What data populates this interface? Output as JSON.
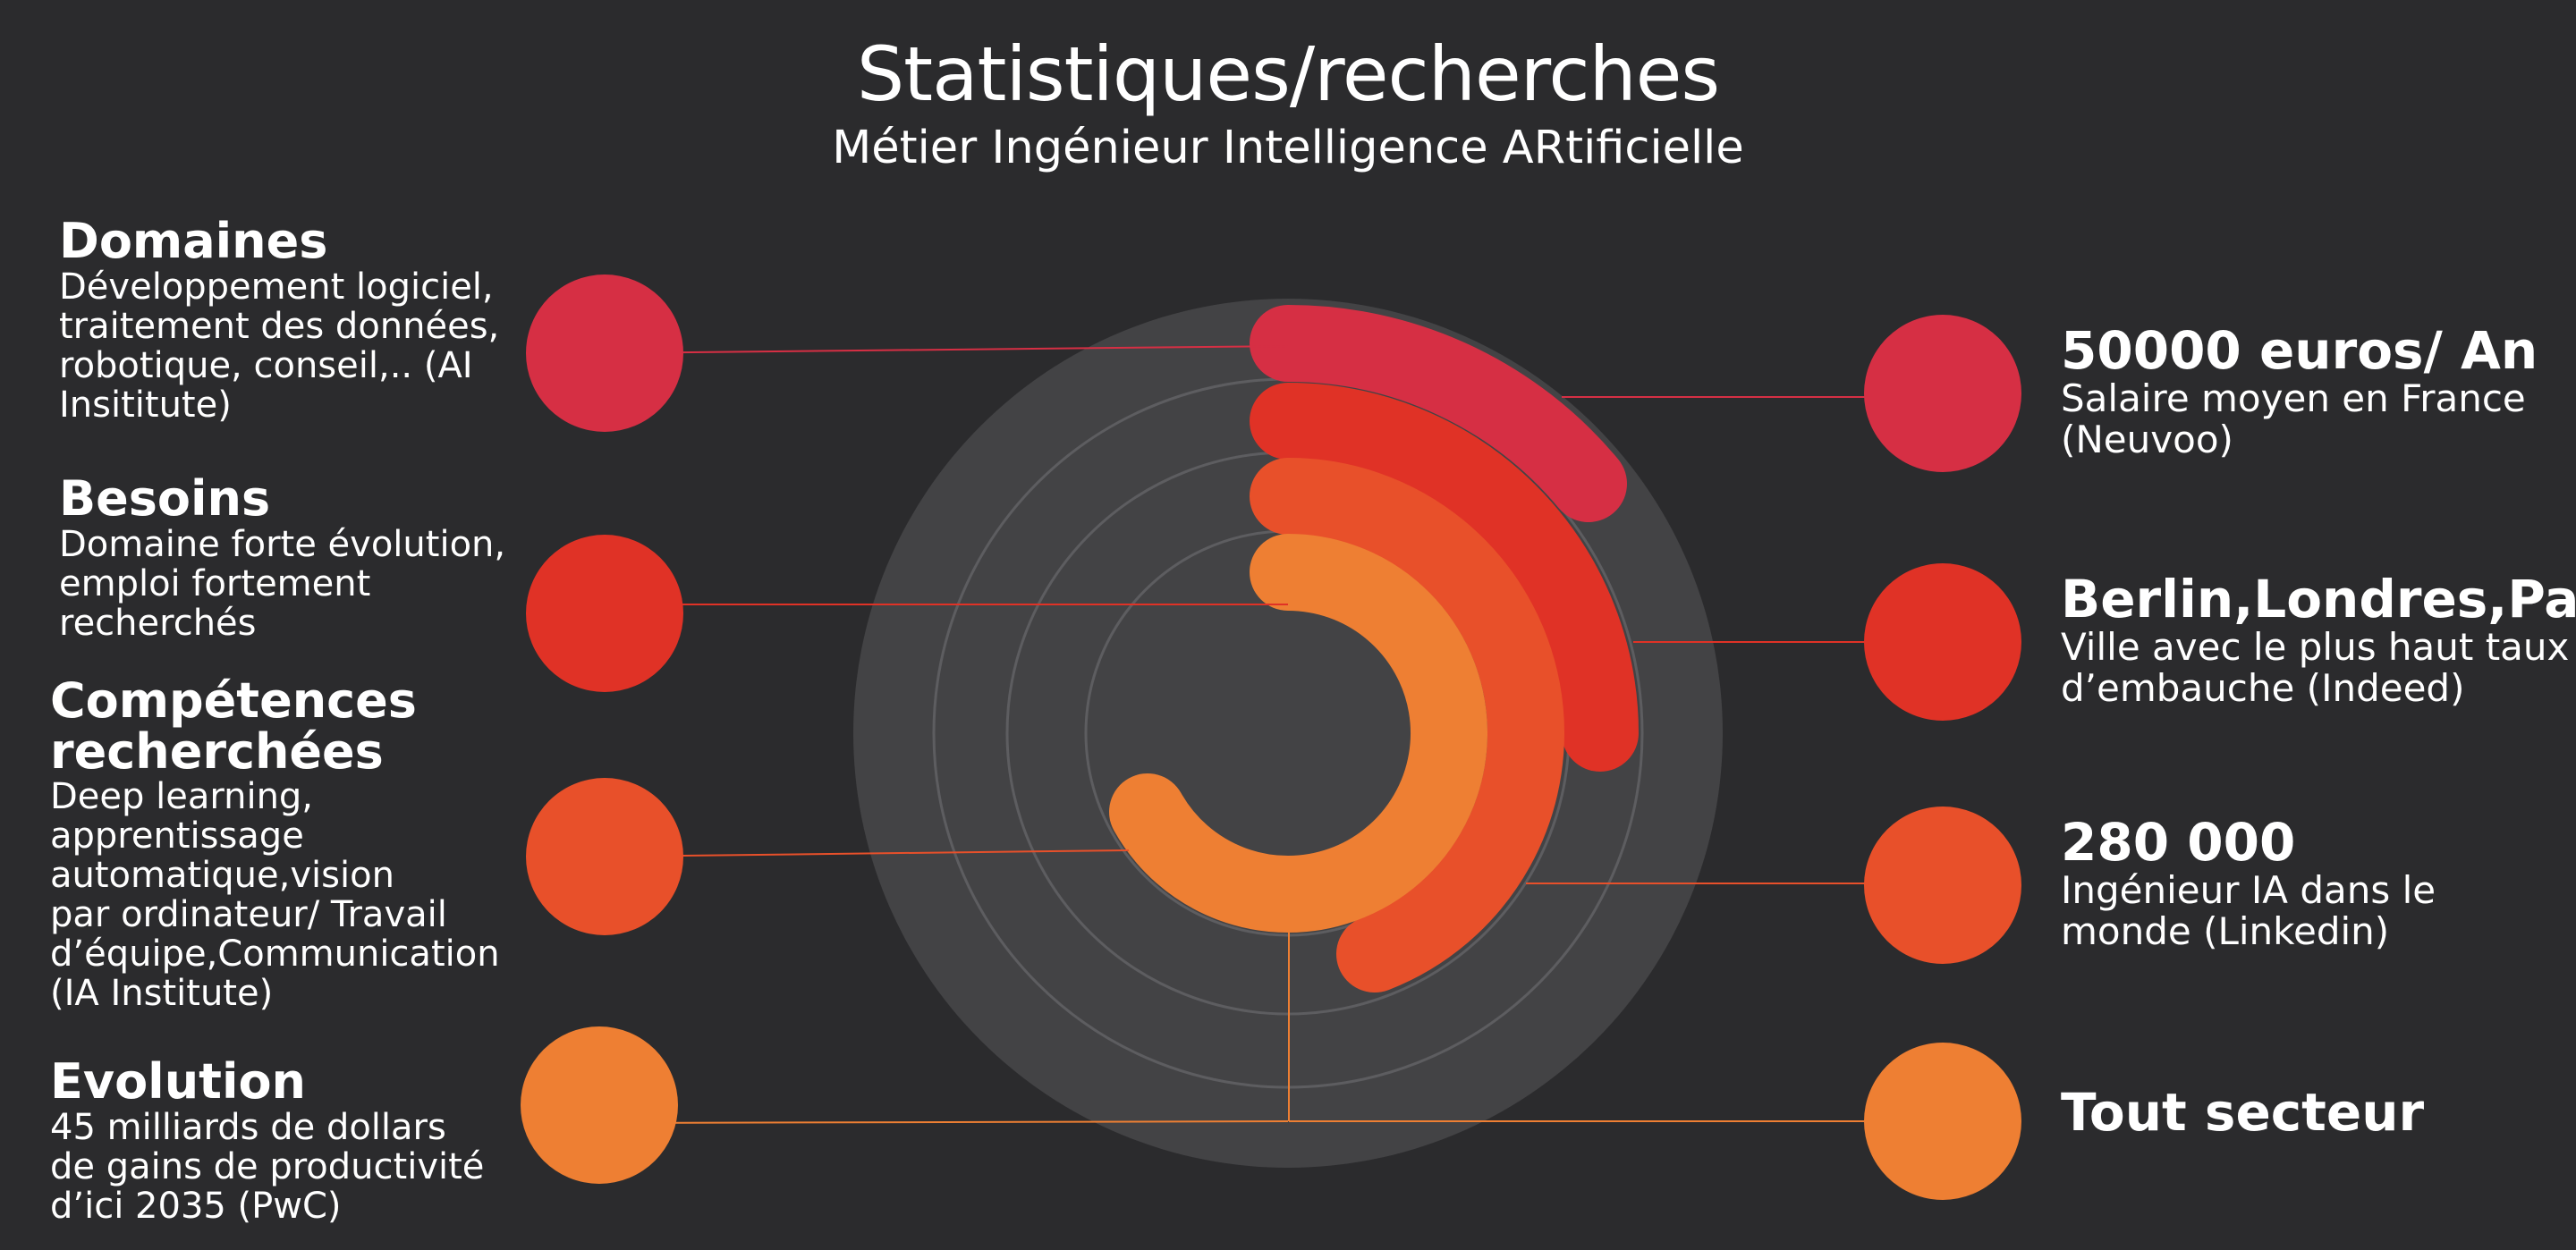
{
  "header": {
    "title": "Statistiques/recherches",
    "subtitle": "Métier Ingénieur Intelligence ARtificielle"
  },
  "colors": {
    "background": "#2b2b2d",
    "target_disc": "#434345",
    "grid_ring": "#5d5d60",
    "crimson": "#d62f44",
    "red": "#e03226",
    "orange_red": "#e8502a",
    "orange": "#ee7f33"
  },
  "left_items": [
    {
      "heading": "Domaines",
      "text": "Développement logiciel, traitement des données, robotique, conseil,.. (AI Insititute)",
      "color": "crimson"
    },
    {
      "heading": "Besoins",
      "text": "Domaine forte évolution, emploi fortement recherchés",
      "color": "red"
    },
    {
      "heading": "Compétences recherchées",
      "text": "Deep learning, apprentissage automatique,vision par ordinateur/ Travail d’équipe,Communication (IA Institute)",
      "color": "orange_red"
    },
    {
      "heading": "Evolution",
      "text": "45 milliards de dollars de gains de productivité d’ici 2035 (PwC)",
      "color": "orange"
    }
  ],
  "right_items": [
    {
      "heading": "50000 euros/ An",
      "text": "Salaire moyen en France (Neuvoo)",
      "color": "crimson"
    },
    {
      "heading": "Berlin,Londres,Paris",
      "text": "Ville avec le plus haut taux d’embauche (Indeed)",
      "color": "red"
    },
    {
      "heading": "280 000",
      "text": "Ingénieur IA dans le monde (Linkedin)",
      "color": "orange_red"
    },
    {
      "heading": "Tout secteur",
      "text": "",
      "color": "orange"
    }
  ]
}
